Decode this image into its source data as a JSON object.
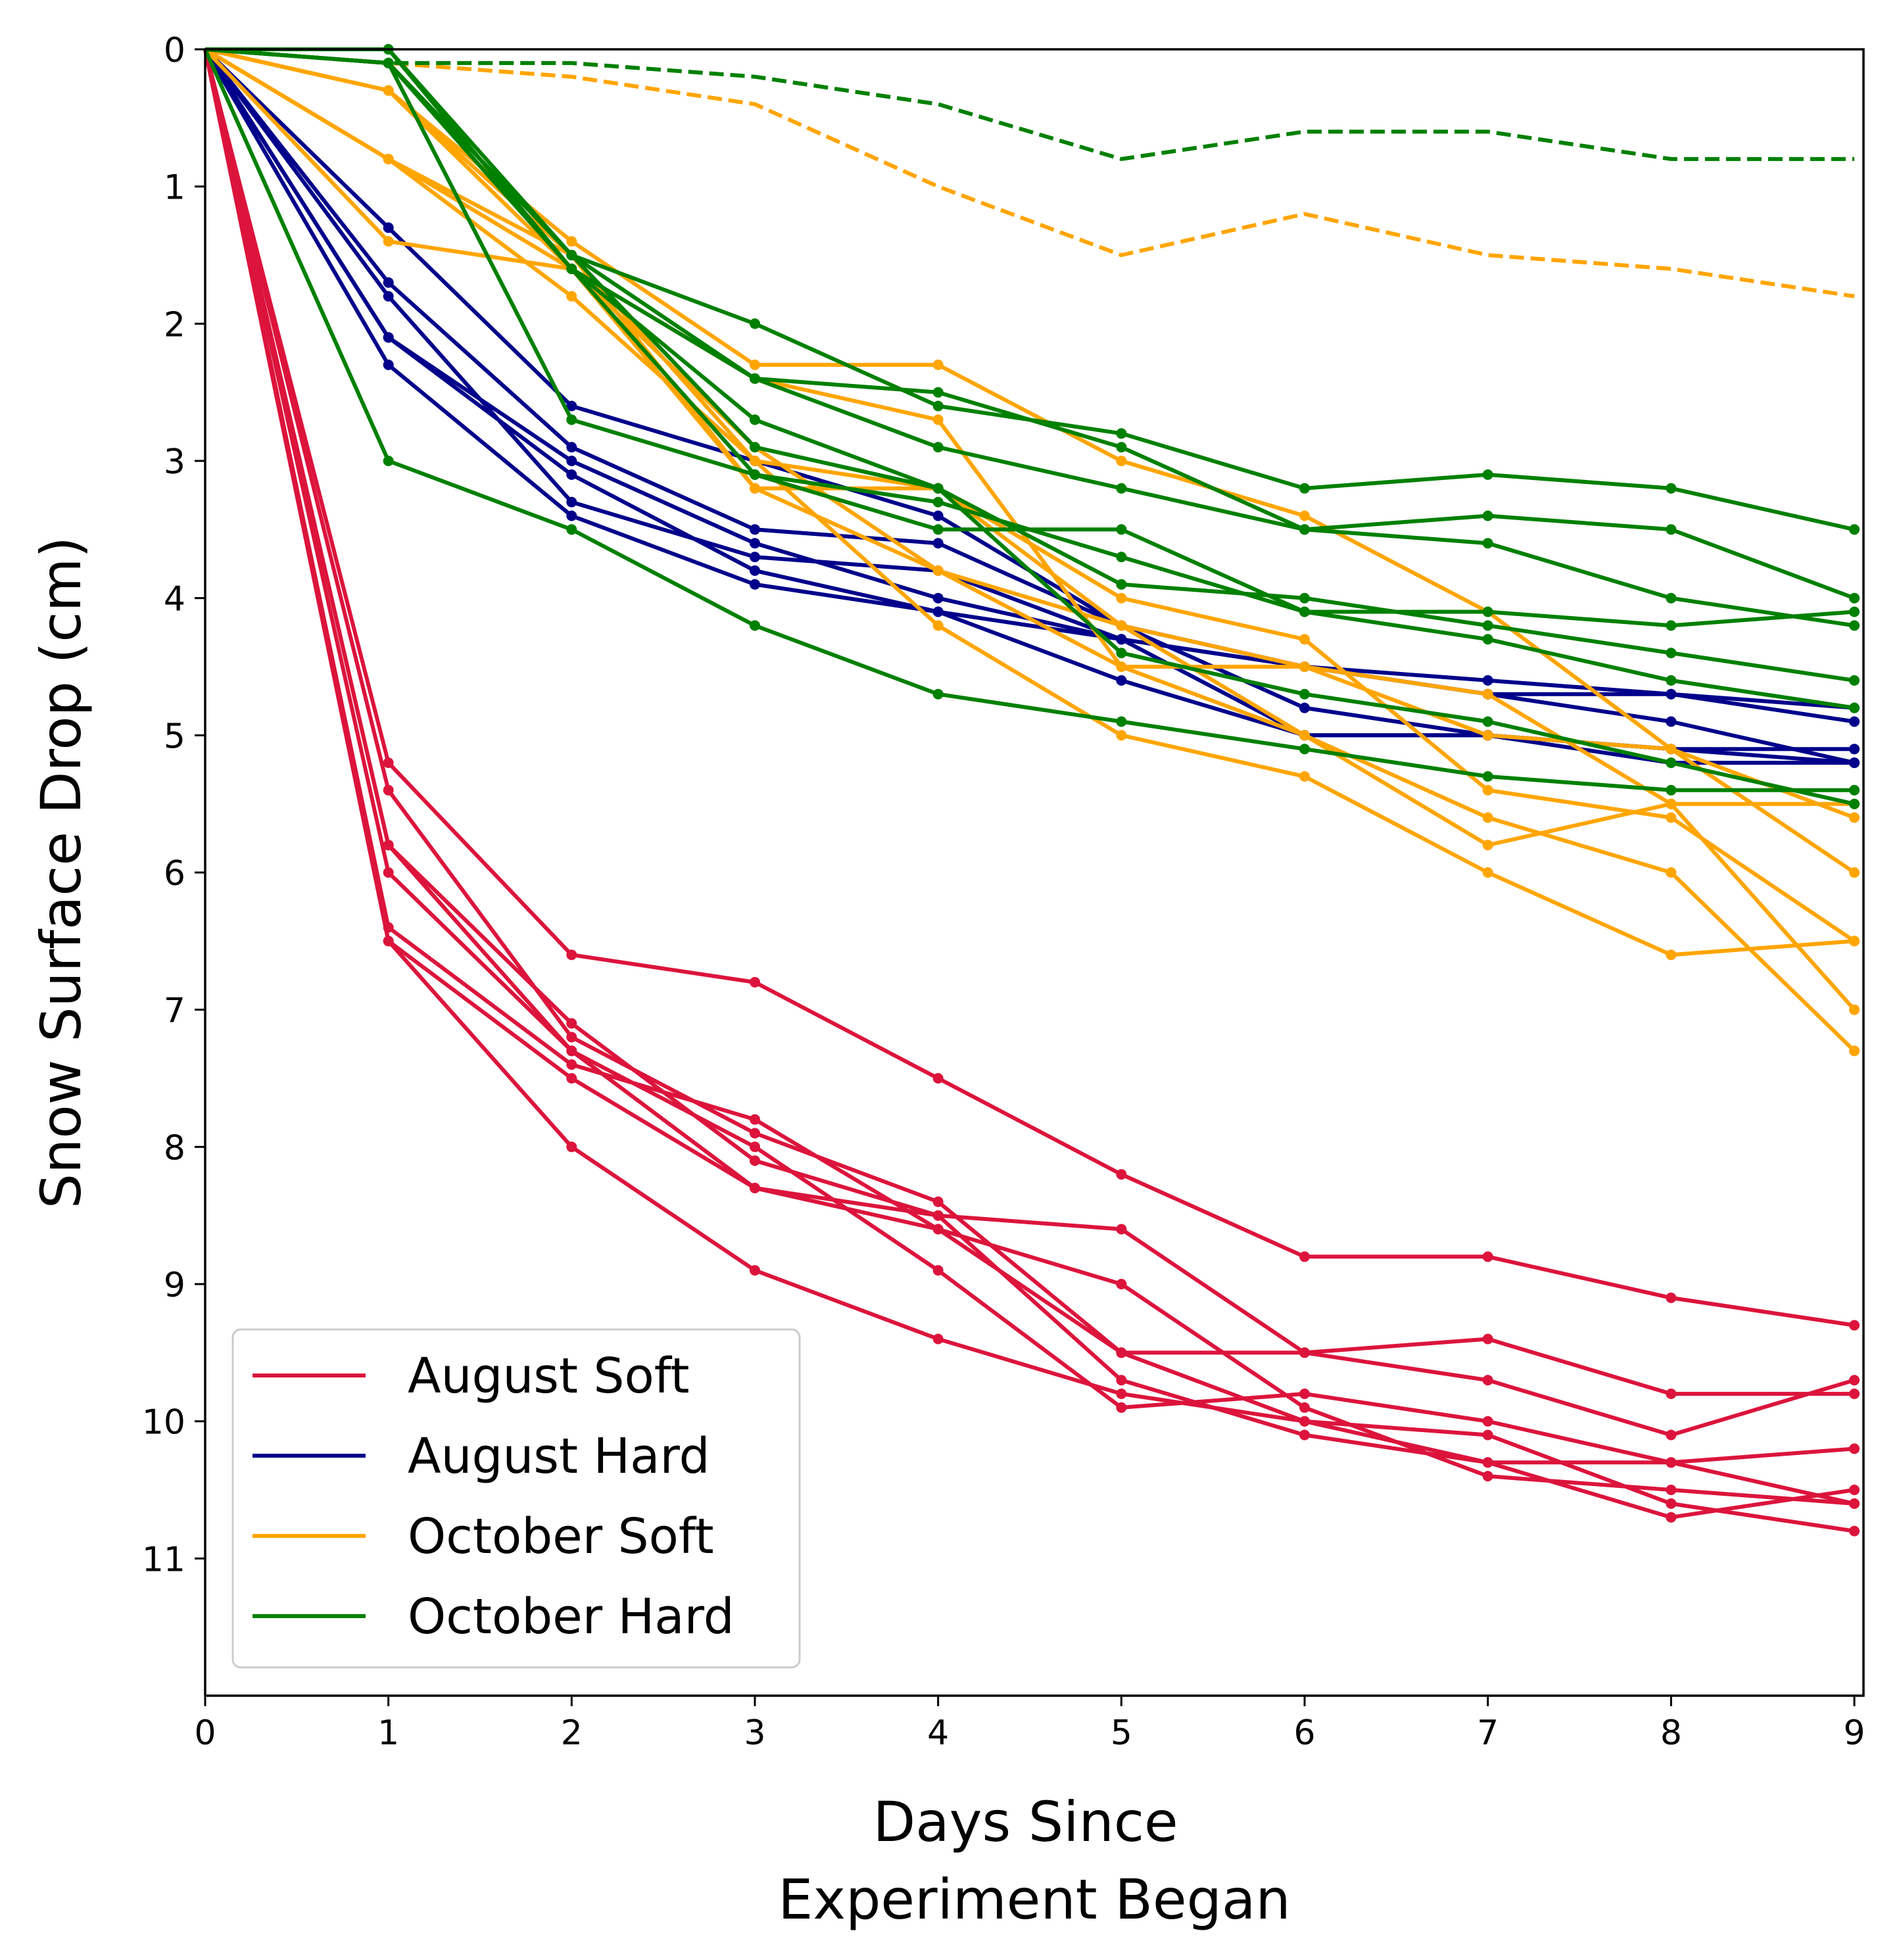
{
  "chart_data": {
    "type": "line",
    "title": "",
    "xlabel": [
      "Days Since",
      "Experiment Began"
    ],
    "ylabel": "Snow Surface Drop (cm)",
    "xlim": [
      0,
      9.05
    ],
    "ylim": [
      0,
      12
    ],
    "y_inverted": true,
    "x_ticks": [
      "0",
      "1",
      "2",
      "3",
      "4",
      "5",
      "6",
      "7",
      "8",
      "9"
    ],
    "y_ticks": [
      "0",
      "1",
      "2",
      "3",
      "4",
      "5",
      "6",
      "7",
      "8",
      "9",
      "10",
      "11"
    ],
    "grid": false,
    "legend_position": "lower-left",
    "x": [
      0,
      1,
      2,
      3,
      4,
      5,
      6,
      7,
      8,
      9
    ],
    "groups": [
      {
        "name": "August Soft",
        "color": "#dc143c"
      },
      {
        "name": "August Hard",
        "color": "#00008b"
      },
      {
        "name": "October Soft",
        "color": "#ffa500"
      },
      {
        "name": "October Hard",
        "color": "#008000"
      }
    ],
    "series": [
      {
        "group": "August Soft",
        "style": "solid",
        "values": [
          0,
          5.2,
          6.6,
          6.8,
          7.5,
          8.2,
          8.8,
          8.8,
          9.1,
          9.3
        ]
      },
      {
        "group": "August Soft",
        "style": "solid",
        "values": [
          0,
          5.4,
          7.2,
          7.9,
          8.4,
          9.5,
          9.5,
          9.4,
          9.8,
          9.8
        ]
      },
      {
        "group": "August Soft",
        "style": "solid",
        "values": [
          0,
          5.8,
          7.1,
          8.1,
          8.5,
          9.7,
          10.1,
          10.3,
          10.3,
          10.2
        ]
      },
      {
        "group": "August Soft",
        "style": "solid",
        "values": [
          0,
          6.0,
          7.3,
          8.3,
          8.5,
          8.6,
          9.5,
          9.7,
          10.1,
          9.7
        ]
      },
      {
        "group": "August Soft",
        "style": "solid",
        "values": [
          0,
          6.4,
          7.4,
          7.8,
          8.6,
          9.0,
          9.9,
          10.4,
          10.5,
          10.6
        ]
      },
      {
        "group": "August Soft",
        "style": "solid",
        "values": [
          0,
          5.8,
          7.3,
          8.0,
          8.9,
          9.9,
          9.8,
          10.0,
          10.3,
          10.6
        ]
      },
      {
        "group": "August Soft",
        "style": "solid",
        "values": [
          0,
          6.5,
          7.5,
          8.3,
          8.6,
          9.5,
          10.0,
          10.3,
          10.7,
          10.5
        ]
      },
      {
        "group": "August Soft",
        "style": "solid",
        "values": [
          0,
          6.5,
          8.0,
          8.9,
          9.4,
          9.8,
          10.0,
          10.1,
          10.6,
          10.8
        ]
      },
      {
        "group": "August Hard",
        "style": "solid",
        "values": [
          0,
          1.3,
          2.6,
          3.0,
          3.4,
          4.2,
          4.5,
          4.7,
          4.7,
          4.8
        ]
      },
      {
        "group": "August Hard",
        "style": "solid",
        "values": [
          0,
          1.7,
          2.9,
          3.5,
          3.6,
          4.2,
          4.8,
          5.0,
          5.1,
          5.2
        ]
      },
      {
        "group": "August Hard",
        "style": "solid",
        "values": [
          0,
          1.8,
          3.3,
          3.7,
          3.8,
          4.3,
          4.5,
          4.6,
          4.7,
          4.9
        ]
      },
      {
        "group": "August Hard",
        "style": "solid",
        "values": [
          0,
          2.1,
          3.0,
          3.6,
          4.0,
          4.3,
          4.5,
          4.7,
          4.9,
          5.2
        ]
      },
      {
        "group": "August Hard",
        "style": "solid",
        "values": [
          0,
          2.1,
          3.1,
          3.8,
          4.1,
          4.3,
          5.0,
          5.0,
          5.1,
          5.1
        ]
      },
      {
        "group": "August Hard",
        "style": "solid",
        "values": [
          0,
          2.3,
          3.4,
          3.9,
          4.1,
          4.6,
          5.0,
          5.0,
          5.2,
          5.2
        ]
      },
      {
        "group": "October Soft",
        "style": "dashed",
        "values": [
          0,
          0.1,
          0.2,
          0.4,
          1.0,
          1.5,
          1.2,
          1.5,
          1.6,
          1.8
        ]
      },
      {
        "group": "October Soft",
        "style": "solid",
        "values": [
          0,
          0.3,
          1.4,
          2.3,
          2.3,
          3.0,
          3.4,
          4.1,
          5.1,
          6.0
        ]
      },
      {
        "group": "October Soft",
        "style": "solid",
        "values": [
          0,
          0.8,
          1.8,
          3.0,
          3.2,
          4.0,
          4.3,
          5.4,
          5.6,
          6.5
        ]
      },
      {
        "group": "October Soft",
        "style": "solid",
        "values": [
          0,
          0.8,
          1.6,
          3.2,
          3.2,
          4.2,
          4.5,
          4.7,
          5.5,
          7.0
        ]
      },
      {
        "group": "October Soft",
        "style": "solid",
        "values": [
          0,
          1.4,
          1.6,
          2.9,
          3.8,
          4.5,
          5.0,
          5.6,
          6.0,
          7.3
        ]
      },
      {
        "group": "October Soft",
        "style": "solid",
        "values": [
          0,
          0.3,
          1.6,
          2.4,
          2.7,
          4.5,
          4.5,
          5.0,
          5.1,
          5.6
        ]
      },
      {
        "group": "October Soft",
        "style": "solid",
        "values": [
          0,
          0.3,
          1.5,
          3.0,
          4.2,
          5.0,
          5.3,
          6.0,
          6.6,
          6.5
        ]
      },
      {
        "group": "October Soft",
        "style": "solid",
        "values": [
          0,
          0.8,
          1.5,
          3.2,
          3.8,
          4.2,
          5.0,
          5.8,
          5.5,
          5.5
        ]
      },
      {
        "group": "October Hard",
        "style": "dashed",
        "values": [
          0,
          0.1,
          0.1,
          0.2,
          0.4,
          0.8,
          0.6,
          0.6,
          0.8,
          0.8
        ]
      },
      {
        "group": "October Hard",
        "style": "solid",
        "values": [
          0,
          0.1,
          1.5,
          2.0,
          2.6,
          2.8,
          3.2,
          3.1,
          3.2,
          3.5
        ]
      },
      {
        "group": "October Hard",
        "style": "solid",
        "values": [
          0,
          0.1,
          1.6,
          2.4,
          2.5,
          2.9,
          3.5,
          3.4,
          3.5,
          4.0
        ]
      },
      {
        "group": "October Hard",
        "style": "solid",
        "values": [
          0,
          0.1,
          1.5,
          2.4,
          2.9,
          3.2,
          3.5,
          3.6,
          4.0,
          4.2
        ]
      },
      {
        "group": "October Hard",
        "style": "solid",
        "values": [
          0,
          0.1,
          1.6,
          2.7,
          3.2,
          3.9,
          4.0,
          4.2,
          4.4,
          4.6
        ]
      },
      {
        "group": "October Hard",
        "style": "solid",
        "values": [
          0,
          0.0,
          1.6,
          3.1,
          3.3,
          3.7,
          4.1,
          4.3,
          4.6,
          4.8
        ]
      },
      {
        "group": "October Hard",
        "style": "solid",
        "values": [
          0,
          0.1,
          2.7,
          3.1,
          3.5,
          3.5,
          4.1,
          4.1,
          4.2,
          4.1
        ]
      },
      {
        "group": "October Hard",
        "style": "solid",
        "values": [
          0,
          0.0,
          1.5,
          2.9,
          3.2,
          4.4,
          4.7,
          4.9,
          5.2,
          5.5
        ]
      },
      {
        "group": "October Hard",
        "style": "solid",
        "values": [
          0,
          3.0,
          3.5,
          4.2,
          4.7,
          4.9,
          5.1,
          5.3,
          5.4,
          5.4
        ]
      }
    ]
  }
}
